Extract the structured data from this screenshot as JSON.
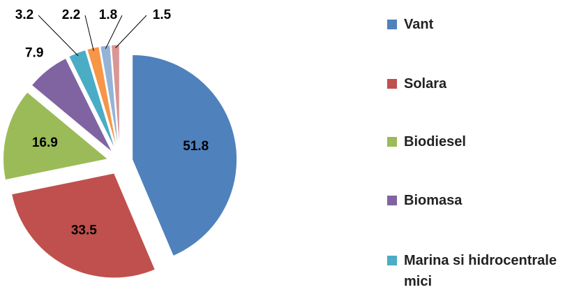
{
  "chart_data": {
    "type": "pie",
    "categories": [
      "Vant",
      "Solara",
      "Biodiesel",
      "Biomasa",
      "Marina si hidrocentrale mici",
      null,
      null,
      null
    ],
    "values": [
      51.8,
      33.5,
      16.9,
      7.9,
      3.2,
      2.2,
      1.8,
      1.5
    ],
    "colors": [
      "#4f81bd",
      "#c0504d",
      "#9bbb59",
      "#8064a2",
      "#4bacc6",
      "#f79646",
      "#95b3d7",
      "#d99694"
    ],
    "exploded": true,
    "legend": "right"
  }
}
